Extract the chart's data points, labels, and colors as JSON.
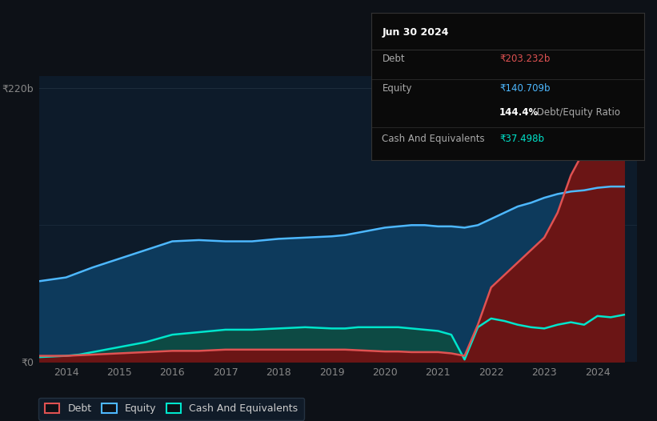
{
  "bg_color": "#0d1117",
  "plot_bg_color": "#0d1b2a",
  "tooltip_bg": "#0a0a0a",
  "tooltip_border": "#333333",
  "ylabel_top": "₹220b",
  "ylabel_bottom": "₹0",
  "x_tick_positions": [
    2014,
    2015,
    2016,
    2017,
    2018,
    2019,
    2020,
    2021,
    2022,
    2023,
    2024
  ],
  "legend": [
    {
      "label": "Debt",
      "color": "#e05252"
    },
    {
      "label": "Equity",
      "color": "#4db8ff"
    },
    {
      "label": "Cash And Equivalents",
      "color": "#00e5cc"
    }
  ],
  "debt_color": "#e05252",
  "equity_color": "#4db8ff",
  "cash_color": "#00e5cc",
  "debt_fill": "#6b1515",
  "equity_fill": "#0d3a5c",
  "cash_fill": "#0d4a44",
  "ylim": [
    0,
    230
  ],
  "xlim": [
    2013.5,
    2024.75
  ],
  "years": [
    2013.5,
    2014.0,
    2014.25,
    2014.5,
    2015.0,
    2015.5,
    2016.0,
    2016.5,
    2017.0,
    2017.5,
    2018.0,
    2018.5,
    2019.0,
    2019.25,
    2019.5,
    2019.75,
    2020.0,
    2020.25,
    2020.5,
    2020.75,
    2021.0,
    2021.25,
    2021.5,
    2021.75,
    2022.0,
    2022.25,
    2022.5,
    2022.75,
    2023.0,
    2023.25,
    2023.5,
    2023.75,
    2024.0,
    2024.25,
    2024.5
  ],
  "debt": [
    5,
    5,
    5.5,
    6,
    7,
    8,
    9,
    9,
    10,
    10,
    10,
    10,
    10,
    10,
    9.5,
    9,
    8.5,
    8.5,
    8,
    8,
    8,
    7,
    5,
    30,
    60,
    70,
    80,
    90,
    100,
    120,
    150,
    170,
    203,
    215,
    210
  ],
  "equity": [
    65,
    68,
    72,
    76,
    83,
    90,
    97,
    98,
    97,
    97,
    99,
    100,
    101,
    102,
    104,
    106,
    108,
    109,
    110,
    110,
    109,
    109,
    108,
    110,
    115,
    120,
    125,
    128,
    132,
    135,
    137,
    138,
    140,
    141,
    141
  ],
  "cash": [
    4,
    5,
    6,
    8,
    12,
    16,
    22,
    24,
    26,
    26,
    27,
    28,
    27,
    27,
    28,
    28,
    28,
    28,
    27,
    26,
    25,
    22,
    2,
    28,
    35,
    33,
    30,
    28,
    27,
    30,
    32,
    30,
    37,
    36,
    38
  ],
  "tooltip_date": "Jun 30 2024",
  "tooltip_debt_label": "Debt",
  "tooltip_debt_value": "₹203.232b",
  "tooltip_debt_color": "#e05252",
  "tooltip_equity_label": "Equity",
  "tooltip_equity_value": "₹140.709b",
  "tooltip_equity_color": "#4db8ff",
  "tooltip_ratio_bold": "144.4%",
  "tooltip_ratio_normal": " Debt/Equity Ratio",
  "tooltip_cash_label": "Cash And Equivalents",
  "tooltip_cash_value": "₹37.498b",
  "tooltip_cash_color": "#00e5cc",
  "label_color": "#aaaaaa",
  "white": "#ffffff",
  "grid_color": "#1e2d3d",
  "tick_color": "#888888"
}
